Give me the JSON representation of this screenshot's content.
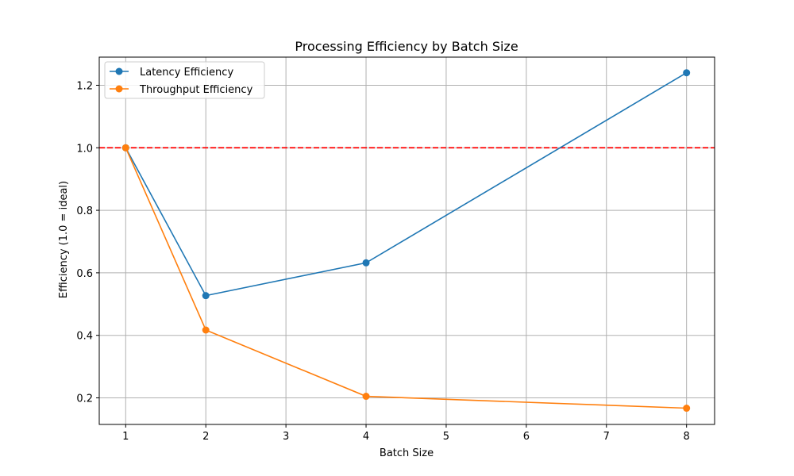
{
  "chart_data": {
    "type": "line",
    "title": "Processing Efficiency by Batch Size",
    "xlabel": "Batch Size",
    "ylabel": "Efficiency (1.0 = ideal)",
    "x": [
      1,
      2,
      4,
      8
    ],
    "xlim": [
      0.67,
      8.35
    ],
    "ylim": [
      0.115,
      1.29
    ],
    "xticks": [
      "1",
      "2",
      "3",
      "4",
      "5",
      "6",
      "7",
      "8"
    ],
    "yticks": [
      "0.2",
      "0.4",
      "0.6",
      "0.8",
      "1.0",
      "1.2"
    ],
    "grid": true,
    "legend_position": "top-left",
    "series": [
      {
        "name": "Latency Efficiency",
        "color": "#1f77b4",
        "values": [
          1.0,
          0.527,
          0.632,
          1.24
        ]
      },
      {
        "name": "Throughput Efficiency",
        "color": "#ff7f0e",
        "values": [
          1.0,
          0.417,
          0.205,
          0.167
        ]
      }
    ],
    "reference_line": {
      "y": 1.0,
      "color": "#ff0000",
      "style": "dashed"
    }
  }
}
